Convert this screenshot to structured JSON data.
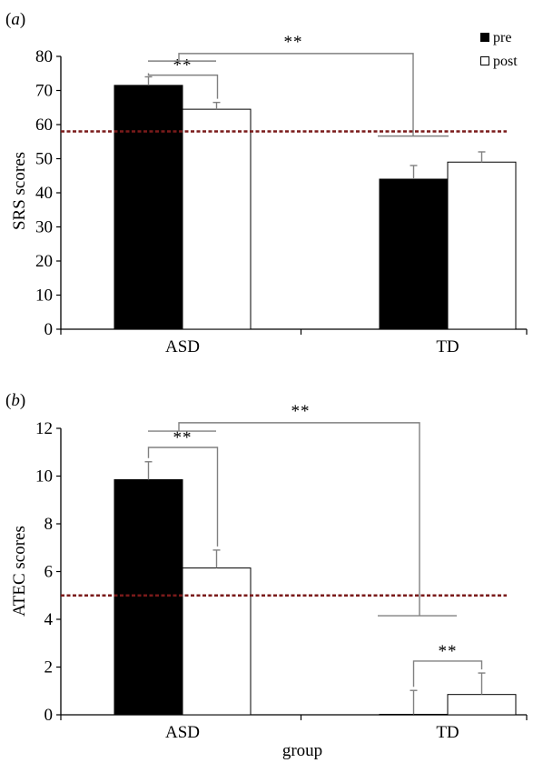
{
  "colors": {
    "pre": "#000000",
    "post": "#ffffff",
    "reference": "#7a1a1a",
    "bracket": "#808080"
  },
  "legend": {
    "pre": "pre",
    "post": "post",
    "position": "top-right"
  },
  "xlabel": "group",
  "chart_data": [
    {
      "type": "bar",
      "panel": "(a)",
      "panel_letter": "a",
      "ylabel": "SRS scores",
      "xlabel": "",
      "categories": [
        "ASD",
        "TD"
      ],
      "series": [
        {
          "name": "pre",
          "values": [
            71.5,
            44.0
          ],
          "errors": [
            2.5,
            4.0
          ]
        },
        {
          "name": "post",
          "values": [
            64.5,
            49.0
          ],
          "errors": [
            2.0,
            3.0
          ]
        }
      ],
      "ylim": [
        0,
        80
      ],
      "yticks": [
        "0",
        "10",
        "20",
        "30",
        "40",
        "50",
        "60",
        "70",
        "80"
      ],
      "reference_line": 58,
      "significance": [
        "**",
        "**"
      ],
      "legend": [
        "pre",
        "post"
      ],
      "grid": false
    },
    {
      "type": "bar",
      "panel": "(b)",
      "panel_letter": "b",
      "ylabel": "ATEC scores",
      "xlabel": "group",
      "categories": [
        "ASD",
        "TD"
      ],
      "series": [
        {
          "name": "pre",
          "values": [
            9.85,
            0.02
          ],
          "errors": [
            0.75,
            1.0
          ]
        },
        {
          "name": "post",
          "values": [
            6.15,
            0.85
          ],
          "errors": [
            0.75,
            0.9
          ]
        }
      ],
      "ylim": [
        0,
        12
      ],
      "yticks": [
        "0",
        "2",
        "4",
        "6",
        "8",
        "10",
        "12"
      ],
      "reference_line": 5,
      "significance": [
        "**",
        "**",
        "**"
      ],
      "grid": false
    }
  ]
}
